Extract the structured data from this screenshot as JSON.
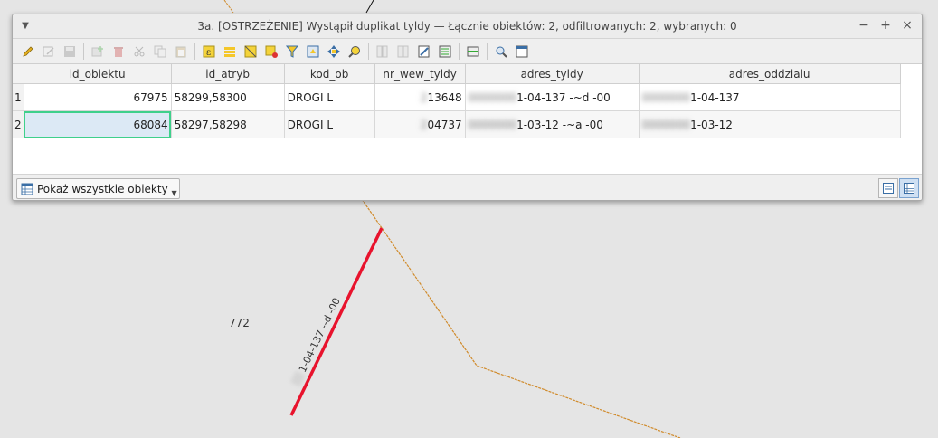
{
  "map": {
    "polygon_label": "772",
    "parcel_label": "1-04-137   --d  -00"
  },
  "window": {
    "title": "3a. [OSTRZEŻENIE] Wystąpił duplikat tyldy — Łącznie obiektów: 2, odfiltrowanych: 2, wybranych: 0",
    "buttons": {
      "minimize": "−",
      "maximize": "+",
      "close": "×"
    }
  },
  "toolbar": {
    "icons": [
      "pencil-icon",
      "multi-edit-icon",
      "save-icon",
      "add-feature-icon",
      "delete-icon",
      "cut-icon",
      "copy-icon",
      "paste-icon",
      "expression-select-icon",
      "select-all-icon",
      "invert-selection-icon",
      "deselect-icon",
      "filter-icon",
      "move-to-top-icon",
      "pan-to-selected-icon",
      "zoom-to-selected-icon",
      "new-field-icon",
      "delete-field-icon",
      "field-calculator-icon",
      "conditional-format-icon",
      "actions-icon",
      "dock-icon",
      "form-icon"
    ]
  },
  "table": {
    "columns": [
      "id_obiektu",
      "id_atryb",
      "kod_ob",
      "nr_wew_tyldy",
      "adres_tyldy",
      "adres_oddzialu"
    ],
    "rows": [
      {
        "num": "1",
        "id_obiektu": "67975",
        "id_atryb": "58299,58300",
        "kod_ob": "DROGI L",
        "nr_wew_tyldy": "13648",
        "adres_tyldy": "1-04-137   -~d  -00",
        "adres_oddzialu": "1-04-137"
      },
      {
        "num": "2",
        "id_obiektu": "68084",
        "id_atryb": "58297,58298",
        "kod_ob": "DROGI L",
        "nr_wew_tyldy": "04737",
        "adres_tyldy": "1-03-12    -~a  -00",
        "adres_oddzialu": "1-03-12"
      }
    ]
  },
  "bottom": {
    "filter_label": "Pokaż wszystkie obiekty"
  },
  "colors": {
    "selection_outline": "#3fd08b",
    "parcel_line": "#e8132d",
    "boundary_line": "#d08a2a"
  }
}
